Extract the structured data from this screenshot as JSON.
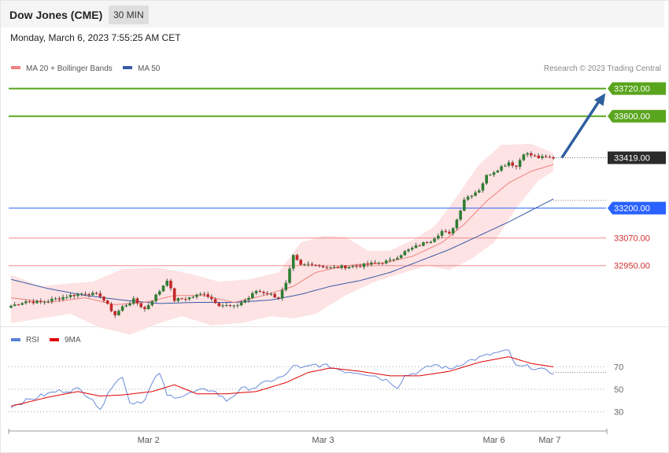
{
  "header": {
    "title": "Dow Jones (CME)",
    "timeframe": "30 MIN",
    "datetime": "Monday, March 6, 2023 7:55:25 AM CET"
  },
  "colors": {
    "bull": "#2e7d32",
    "bear": "#c62828",
    "bollinger_fill": "#fde3e3",
    "ma20": "#f08080",
    "ma50": "#3a5aa8",
    "resistance": "#5aa51e",
    "pivot": "#2962ff",
    "support": "#f28b8b",
    "arrow": "#2f5f9f",
    "rsi": "#5b7fd8",
    "rsi_ma": "#e00000"
  },
  "chart_data": [
    {
      "type": "candlestick",
      "legend": [
        {
          "name": "MA 20 + Bollinger Bands",
          "color": "#f08080"
        },
        {
          "name": "MA 50",
          "color": "#3a5aa8"
        }
      ],
      "credit": "Research © 2023 Trading Central",
      "ylim": [
        32600,
        33900
      ],
      "x_ticks": [
        {
          "label": "Mar 2",
          "index": 37
        },
        {
          "label": "Mar 3",
          "index": 84
        },
        {
          "label": "Mar 6",
          "index": 130
        },
        {
          "label": "Mar 7",
          "index": 145
        }
      ],
      "levels": [
        {
          "value": 33720,
          "label": "33720.00",
          "kind": "resistance"
        },
        {
          "value": 33600,
          "label": "33600.00",
          "kind": "resistance"
        },
        {
          "value": 33419,
          "label": "33419.00",
          "kind": "last"
        },
        {
          "value": 33200,
          "label": "33200.00",
          "kind": "pivot"
        },
        {
          "value": 33070,
          "label": "33070.00",
          "kind": "support"
        },
        {
          "value": 32950,
          "label": "32950.00",
          "kind": "support"
        }
      ],
      "forecast_arrow": {
        "from": {
          "index": 147,
          "value": 33419
        },
        "to": {
          "index": 160,
          "value": 33700
        }
      },
      "anchors": {
        "close": [
          [
            0,
            32775
          ],
          [
            4,
            32795
          ],
          [
            8,
            32790
          ],
          [
            12,
            32805
          ],
          [
            16,
            32820
          ],
          [
            20,
            32830
          ],
          [
            24,
            32820
          ],
          [
            28,
            32735
          ],
          [
            30,
            32770
          ],
          [
            33,
            32800
          ],
          [
            36,
            32760
          ],
          [
            40,
            32840
          ],
          [
            42,
            32890
          ],
          [
            44,
            32800
          ],
          [
            48,
            32810
          ],
          [
            52,
            32830
          ],
          [
            56,
            32780
          ],
          [
            60,
            32770
          ],
          [
            64,
            32810
          ],
          [
            66,
            32840
          ],
          [
            69,
            32830
          ],
          [
            72,
            32810
          ],
          [
            74,
            32870
          ],
          [
            76,
            32990
          ],
          [
            78,
            32950
          ],
          [
            81,
            32960
          ],
          [
            83,
            32950
          ],
          [
            86,
            32940
          ],
          [
            90,
            32945
          ],
          [
            94,
            32950
          ],
          [
            98,
            32960
          ],
          [
            102,
            32970
          ],
          [
            106,
            33010
          ],
          [
            110,
            33040
          ],
          [
            113,
            33060
          ],
          [
            116,
            33100
          ],
          [
            118,
            33085
          ],
          [
            120,
            33150
          ],
          [
            122,
            33240
          ],
          [
            126,
            33280
          ],
          [
            128,
            33340
          ],
          [
            130,
            33360
          ],
          [
            134,
            33400
          ],
          [
            136,
            33380
          ],
          [
            138,
            33440
          ],
          [
            142,
            33420
          ],
          [
            146,
            33419
          ]
        ],
        "ma20": [
          [
            0,
            32810
          ],
          [
            10,
            32790
          ],
          [
            20,
            32810
          ],
          [
            28,
            32780
          ],
          [
            36,
            32790
          ],
          [
            44,
            32820
          ],
          [
            52,
            32820
          ],
          [
            60,
            32790
          ],
          [
            68,
            32820
          ],
          [
            76,
            32860
          ],
          [
            82,
            32920
          ],
          [
            90,
            32950
          ],
          [
            100,
            32960
          ],
          [
            108,
            32990
          ],
          [
            116,
            33050
          ],
          [
            122,
            33130
          ],
          [
            128,
            33230
          ],
          [
            134,
            33310
          ],
          [
            140,
            33360
          ],
          [
            146,
            33390
          ]
        ],
        "boll_upper": [
          [
            0,
            32910
          ],
          [
            8,
            32860
          ],
          [
            14,
            32870
          ],
          [
            22,
            32880
          ],
          [
            30,
            32935
          ],
          [
            40,
            32940
          ],
          [
            48,
            32915
          ],
          [
            56,
            32880
          ],
          [
            64,
            32890
          ],
          [
            72,
            32920
          ],
          [
            78,
            33050
          ],
          [
            84,
            33080
          ],
          [
            90,
            33075
          ],
          [
            96,
            33015
          ],
          [
            102,
            33015
          ],
          [
            108,
            33060
          ],
          [
            114,
            33120
          ],
          [
            120,
            33250
          ],
          [
            126,
            33390
          ],
          [
            132,
            33475
          ],
          [
            140,
            33480
          ],
          [
            146,
            33440
          ]
        ],
        "boll_lower": [
          [
            0,
            32700
          ],
          [
            8,
            32720
          ],
          [
            16,
            32740
          ],
          [
            24,
            32680
          ],
          [
            32,
            32650
          ],
          [
            40,
            32700
          ],
          [
            46,
            32730
          ],
          [
            54,
            32690
          ],
          [
            62,
            32700
          ],
          [
            70,
            32730
          ],
          [
            76,
            32720
          ],
          [
            82,
            32740
          ],
          [
            90,
            32820
          ],
          [
            98,
            32880
          ],
          [
            106,
            32920
          ],
          [
            112,
            32950
          ],
          [
            118,
            32930
          ],
          [
            124,
            32980
          ],
          [
            130,
            33050
          ],
          [
            136,
            33200
          ],
          [
            142,
            33320
          ],
          [
            146,
            33360
          ]
        ],
        "ma50": [
          [
            0,
            32890
          ],
          [
            10,
            32850
          ],
          [
            20,
            32820
          ],
          [
            30,
            32800
          ],
          [
            40,
            32785
          ],
          [
            50,
            32790
          ],
          [
            60,
            32790
          ],
          [
            70,
            32800
          ],
          [
            78,
            32825
          ],
          [
            86,
            32860
          ],
          [
            94,
            32885
          ],
          [
            102,
            32920
          ],
          [
            110,
            32970
          ],
          [
            118,
            33020
          ],
          [
            126,
            33080
          ],
          [
            134,
            33140
          ],
          [
            140,
            33190
          ],
          [
            146,
            33240
          ]
        ]
      }
    },
    {
      "type": "line",
      "legend": [
        {
          "name": "RSI",
          "color": "#5b7fd8"
        },
        {
          "name": "9MA",
          "color": "#e00000"
        }
      ],
      "ylim": [
        15,
        85
      ],
      "y_ticks": [
        "70",
        "50",
        "30"
      ],
      "rsi": [
        [
          0,
          35
        ],
        [
          6,
          42
        ],
        [
          12,
          48
        ],
        [
          18,
          50
        ],
        [
          22,
          42
        ],
        [
          24,
          30
        ],
        [
          26,
          48
        ],
        [
          30,
          62
        ],
        [
          32,
          38
        ],
        [
          36,
          40
        ],
        [
          38,
          55
        ],
        [
          40,
          65
        ],
        [
          42,
          44
        ],
        [
          46,
          44
        ],
        [
          50,
          48
        ],
        [
          54,
          50
        ],
        [
          58,
          40
        ],
        [
          62,
          50
        ],
        [
          66,
          52
        ],
        [
          70,
          58
        ],
        [
          74,
          62
        ],
        [
          76,
          72
        ],
        [
          78,
          68
        ],
        [
          82,
          72
        ],
        [
          86,
          70
        ],
        [
          90,
          66
        ],
        [
          94,
          65
        ],
        [
          98,
          62
        ],
        [
          102,
          57
        ],
        [
          104,
          52
        ],
        [
          106,
          62
        ],
        [
          110,
          66
        ],
        [
          114,
          72
        ],
        [
          118,
          68
        ],
        [
          122,
          74
        ],
        [
          126,
          78
        ],
        [
          130,
          82
        ],
        [
          134,
          84
        ],
        [
          136,
          70
        ],
        [
          140,
          70
        ],
        [
          144,
          66
        ],
        [
          146,
          65
        ]
      ],
      "rsi_ma": [
        [
          0,
          35
        ],
        [
          10,
          43
        ],
        [
          18,
          48
        ],
        [
          24,
          44
        ],
        [
          30,
          45
        ],
        [
          38,
          48
        ],
        [
          44,
          54
        ],
        [
          50,
          46
        ],
        [
          58,
          46
        ],
        [
          66,
          48
        ],
        [
          74,
          56
        ],
        [
          80,
          65
        ],
        [
          86,
          69
        ],
        [
          94,
          66
        ],
        [
          102,
          62
        ],
        [
          110,
          62
        ],
        [
          118,
          66
        ],
        [
          126,
          74
        ],
        [
          134,
          79
        ],
        [
          140,
          73
        ],
        [
          146,
          70
        ]
      ]
    }
  ]
}
